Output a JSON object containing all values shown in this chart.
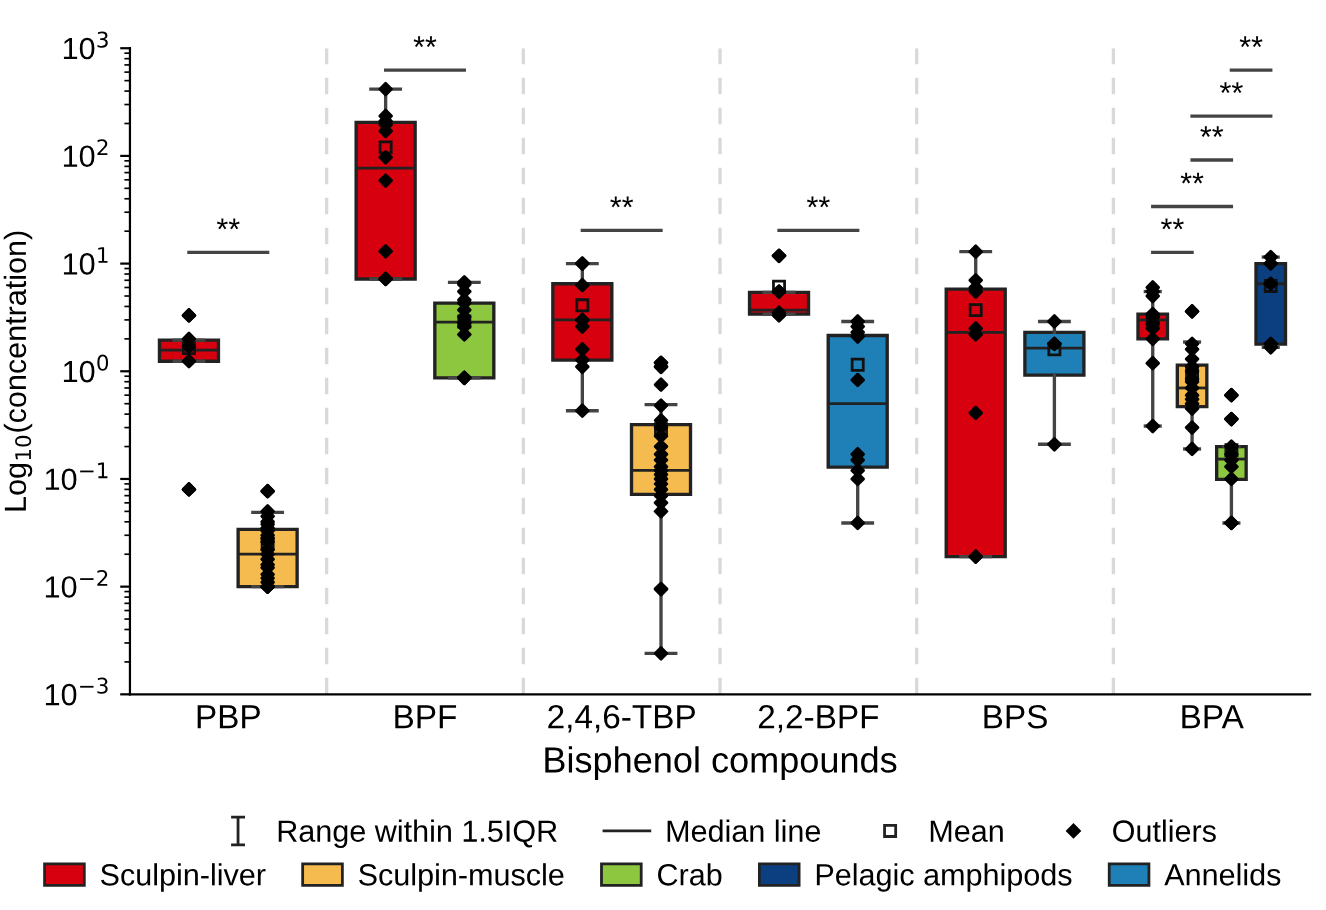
{
  "chart_data": {
    "type": "box",
    "xlabel": "Bisphenol compounds",
    "ylabel": "Log$_{10}$(concentration)",
    "categories": [
      "PBP",
      "BPF",
      "2,4,6-TBP",
      "2,2-BPF",
      "BPS",
      "BPA"
    ],
    "log": true,
    "ylim": [
      0.001,
      1000
    ],
    "yticks": [
      {
        "value": 0.001,
        "label": "10$^{−3}$"
      },
      {
        "value": 0.01,
        "label": "10$^{−2}$"
      },
      {
        "value": 0.1,
        "label": "10$^{−1}$"
      },
      {
        "value": 1,
        "label": "10$^{0}$"
      },
      {
        "value": 10,
        "label": "10$^{1}$"
      },
      {
        "value": 100,
        "label": "10$^{2}$"
      },
      {
        "value": 1000,
        "label": "10$^{3}$"
      }
    ],
    "legend": "bottom",
    "marker": "diamond",
    "annotations": [
      "**",
      "**",
      "**",
      "**",
      "**",
      "**",
      "**",
      "**",
      "**",
      "Range within 1.5IQR",
      "Median line",
      "Mean",
      "Outliers"
    ],
    "series": [
      {
        "name": "Sculpin-liver",
        "color": "#d7000f",
        "boxes": [
          {
            "low": 1.24,
            "q1": 1.24,
            "median": 1.57,
            "q3": 1.95,
            "high": 1.95,
            "mean": 1.64,
            "outliers": [
              3.3,
              3.3,
              2.0,
              1.7,
              1.24,
              0.08,
              0.08
            ]
          },
          {
            "low": 7.2,
            "q1": 7.2,
            "median": 77,
            "q3": 205,
            "high": 417,
            "mean": 120,
            "outliers": [
              417,
              235,
              210,
              195,
              170,
              97,
              59,
              13,
              7.2,
              7.2,
              7.2
            ]
          },
          {
            "low": 0.43,
            "q1": 1.27,
            "median": 3.0,
            "q3": 6.5,
            "high": 10,
            "mean": 4.1,
            "outliers": [
              10,
              10,
              6.3,
              3.0,
              3.0,
              2.6,
              1.6,
              1.27,
              1.1,
              0.43
            ]
          },
          {
            "low": 3.4,
            "q1": 3.4,
            "median": 3.7,
            "q3": 5.4,
            "high": 5.4,
            "mean": 6.1,
            "outliers": [
              11.8,
              11.8,
              5.5,
              5.5,
              3.5,
              3.3
            ]
          },
          {
            "low": 0.019,
            "q1": 0.019,
            "median": 2.3,
            "q3": 5.8,
            "high": 12.9,
            "mean": 3.7,
            "outliers": [
              12.9,
              7,
              6,
              5.5,
              2.5,
              2.2,
              0.41,
              0.019,
              0.019
            ]
          },
          {
            "low": 0.31,
            "q1": 2.0,
            "median": 3.0,
            "q3": 3.4,
            "high": 5.5,
            "mean": 3.0,
            "outliers": [
              6,
              5.5,
              5,
              3.4,
              3.2,
              2.8,
              2.5,
              2.0,
              1.19,
              0.31
            ]
          }
        ]
      },
      {
        "name": "Sculpin-muscle",
        "color": "#f5bb4e",
        "boxes": [
          {
            "low": 0.01,
            "q1": 0.01,
            "median": 0.02,
            "q3": 0.034,
            "high": 0.049,
            "mean": 0.025,
            "outliers": [
              0.077,
              0.077,
              0.05,
              0.045,
              0.04,
              0.038,
              0.035,
              0.033,
              0.03,
              0.028,
              0.026,
              0.022,
              0.02,
              0.018,
              0.016,
              0.015,
              0.013,
              0.012,
              0.011,
              0.01,
              0.01,
              0.01
            ]
          },
          null,
          {
            "low": 0.0024,
            "q1": 0.072,
            "median": 0.12,
            "q3": 0.32,
            "high": 0.49,
            "mean": 0.29,
            "outliers": [
              1.2,
              1.2,
              1.1,
              1.1,
              0.75,
              0.48,
              0.35,
              0.3,
              0.25,
              0.2,
              0.17,
              0.15,
              0.13,
              0.12,
              0.11,
              0.1,
              0.09,
              0.08,
              0.07,
              0.06,
              0.05,
              0.0095,
              0.0095,
              0.0024
            ]
          },
          null,
          null,
          {
            "low": 0.19,
            "q1": 0.47,
            "median": 0.7,
            "q3": 1.14,
            "high": 1.87,
            "mean": 0.92,
            "outliers": [
              3.6,
              3.6,
              1.8,
              1.6,
              1.3,
              1.1,
              1.0,
              0.85,
              0.8,
              0.7,
              0.6,
              0.55,
              0.5,
              0.45,
              0.3,
              0.19
            ]
          }
        ]
      },
      {
        "name": "Crab",
        "color": "#8dc63f",
        "boxes": [
          null,
          {
            "low": 0.87,
            "q1": 0.87,
            "median": 2.86,
            "q3": 4.3,
            "high": 6.7,
            "mean": 2.9,
            "outliers": [
              6.7,
              6.4,
              5.5,
              4.6,
              4.3,
              3.7,
              3.2,
              2.8,
              2.6,
              2.2,
              0.87,
              0.87,
              0.87
            ]
          },
          null,
          null,
          null,
          {
            "low": 0.039,
            "q1": 0.099,
            "median": 0.153,
            "q3": 0.2,
            "high": 0.2,
            "mean": 0.185,
            "outliers": [
              0.6,
              0.6,
              0.36,
              0.36,
              0.2,
              0.17,
              0.15,
              0.13,
              0.1,
              0.039,
              0.039
            ]
          }
        ]
      },
      {
        "name": "Pelagic amphipods",
        "color": "#0b3f7f",
        "boxes": [
          null,
          null,
          null,
          null,
          null,
          {
            "low": 1.67,
            "q1": 1.79,
            "median": 6.5,
            "q3": 10,
            "high": 11.5,
            "mean": 6.2,
            "outliers": [
              11.5,
              10,
              6.5,
              1.8,
              1.67
            ]
          }
        ]
      },
      {
        "name": "Annelids",
        "color": "#1f80b8",
        "boxes": [
          null,
          null,
          null,
          {
            "low": 0.039,
            "q1": 0.129,
            "median": 0.5,
            "q3": 2.15,
            "high": 2.9,
            "mean": 1.15,
            "outliers": [
              2.9,
              2.6,
              2.3,
              2.1,
              0.83,
              0.17,
              0.15,
              0.12,
              0.1,
              0.039
            ]
          },
          {
            "low": 0.21,
            "q1": 0.92,
            "median": 1.64,
            "q3": 2.3,
            "high": 2.9,
            "mean": 1.6,
            "outliers": [
              2.9,
              1.8,
              1.8,
              0.21
            ]
          },
          null
        ]
      }
    ]
  }
}
